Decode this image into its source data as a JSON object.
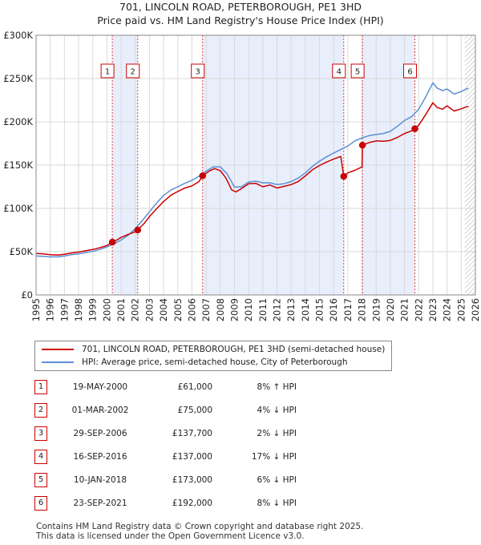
{
  "header": {
    "title_line1": "701, LINCOLN ROAD, PETERBOROUGH, PE1 3HD",
    "title_line2": "Price paid vs. HM Land Registry's House Price Index (HPI)"
  },
  "colors": {
    "property_line": "#cc0000",
    "hpi_line": "#5b8fd4",
    "shade": "#e8eefb",
    "grid": "#d9d9d9",
    "marker_border": "#cc0000",
    "vline": "#dd4444"
  },
  "legend": {
    "property": "701, LINCOLN ROAD, PETERBOROUGH, PE1 3HD (semi-detached house)",
    "hpi": "HPI: Average price, semi-detached house, City of Peterborough"
  },
  "sales": [
    {
      "num": "1",
      "date": "19-MAY-2000",
      "price": "£61,000",
      "hpi": "8% ↑ HPI"
    },
    {
      "num": "2",
      "date": "01-MAR-2002",
      "price": "£75,000",
      "hpi": "4% ↓ HPI"
    },
    {
      "num": "3",
      "date": "29-SEP-2006",
      "price": "£137,700",
      "hpi": "2% ↓ HPI"
    },
    {
      "num": "4",
      "date": "16-SEP-2016",
      "price": "£137,000",
      "hpi": "17% ↓ HPI"
    },
    {
      "num": "5",
      "date": "10-JAN-2018",
      "price": "£173,000",
      "hpi": "6% ↓ HPI"
    },
    {
      "num": "6",
      "date": "23-SEP-2021",
      "price": "£192,000",
      "hpi": "8% ↓ HPI"
    }
  ],
  "footer": {
    "line1": "Contains HM Land Registry data © Crown copyright and database right 2025.",
    "line2": "This data is licensed under the Open Government Licence v3.0."
  },
  "chart_data": {
    "type": "line",
    "title": "701, LINCOLN ROAD, PETERBOROUGH, PE1 3HD",
    "subtitle": "Price paid vs. HM Land Registry's House Price Index (HPI)",
    "xlim": [
      1995,
      2026
    ],
    "ylim": [
      0,
      300000
    ],
    "x_ticks": [
      1995,
      1996,
      1997,
      1998,
      1999,
      2000,
      2001,
      2002,
      2003,
      2004,
      2005,
      2006,
      2007,
      2008,
      2009,
      2010,
      2011,
      2012,
      2013,
      2014,
      2015,
      2016,
      2017,
      2018,
      2019,
      2020,
      2021,
      2022,
      2023,
      2024,
      2025,
      2026
    ],
    "x_tick_labels": [
      "1995",
      "1996",
      "1997",
      "1998",
      "1999",
      "2000",
      "2001",
      "2002",
      "2003",
      "2004",
      "2005",
      "2006",
      "2007",
      "2008",
      "2009",
      "2010",
      "2011",
      "2012",
      "2013",
      "2014",
      "2015",
      "2016",
      "2017",
      "2018",
      "2019",
      "2020",
      "2021",
      "2022",
      "2023",
      "2024",
      "2025",
      "2026"
    ],
    "y_ticks": [
      0,
      50000,
      100000,
      150000,
      200000,
      250000,
      300000
    ],
    "y_tick_labels": [
      "£0",
      "£50K",
      "£100K",
      "£150K",
      "£200K",
      "£250K",
      "£300K"
    ],
    "grid": true,
    "legend_position": "below",
    "shaded_ranges": [
      [
        2000.38,
        2002.17
      ],
      [
        2006.75,
        2016.71
      ],
      [
        2018.03,
        2021.73
      ]
    ],
    "hatched_from": 2025.25,
    "series": [
      {
        "name": "701, LINCOLN ROAD, PETERBOROUGH, PE1 3HD (semi-detached house)",
        "x": [
          1995.0,
          1995.5,
          1996.0,
          1996.5,
          1997.0,
          1997.5,
          1998.0,
          1998.5,
          1999.0,
          1999.5,
          2000.0,
          2000.38,
          2000.7,
          2001.0,
          2001.5,
          2002.0,
          2002.17,
          2002.6,
          2003.0,
          2003.5,
          2004.0,
          2004.5,
          2005.0,
          2005.5,
          2006.0,
          2006.5,
          2006.75,
          2007.2,
          2007.6,
          2008.0,
          2008.4,
          2008.8,
          2009.1,
          2009.5,
          2010.0,
          2010.5,
          2011.0,
          2011.5,
          2012.0,
          2012.5,
          2013.0,
          2013.5,
          2014.0,
          2014.5,
          2015.0,
          2015.5,
          2016.0,
          2016.5,
          2016.71,
          2017.0,
          2017.5,
          2018.0,
          2018.03,
          2018.5,
          2019.0,
          2019.5,
          2020.0,
          2020.5,
          2021.0,
          2021.5,
          2021.73,
          2022.0,
          2022.5,
          2023.0,
          2023.3,
          2023.7,
          2024.0,
          2024.5,
          2025.0,
          2025.5
        ],
        "y": [
          48000,
          47500,
          46500,
          46000,
          47000,
          48500,
          49500,
          51000,
          52500,
          54500,
          57000,
          61000,
          63500,
          66500,
          70000,
          73000,
          75000,
          82000,
          90500,
          99500,
          108000,
          115000,
          119500,
          123500,
          126000,
          131000,
          137700,
          143000,
          146000,
          143500,
          135000,
          121500,
          119000,
          123000,
          128500,
          129000,
          125000,
          127000,
          123500,
          125500,
          127500,
          131000,
          137500,
          144500,
          149500,
          153500,
          157000,
          160000,
          137000,
          141000,
          144000,
          148000,
          173000,
          176000,
          178000,
          177500,
          178500,
          182000,
          186500,
          189500,
          192000,
          196000,
          208500,
          222000,
          216500,
          214500,
          218500,
          212500,
          215000,
          218000
        ]
      },
      {
        "name": "HPI: Average price, semi-detached house, City of Peterborough",
        "x": [
          1995.0,
          1995.5,
          1996.0,
          1996.5,
          1997.0,
          1997.5,
          1998.0,
          1998.5,
          1999.0,
          1999.5,
          2000.0,
          2000.5,
          2001.0,
          2001.5,
          2002.0,
          2002.5,
          2003.0,
          2003.5,
          2004.0,
          2004.5,
          2005.0,
          2005.5,
          2006.0,
          2006.5,
          2007.0,
          2007.5,
          2008.0,
          2008.5,
          2009.0,
          2009.5,
          2010.0,
          2010.5,
          2011.0,
          2011.5,
          2012.0,
          2012.5,
          2013.0,
          2013.5,
          2014.0,
          2014.5,
          2015.0,
          2015.5,
          2016.0,
          2016.5,
          2017.0,
          2017.5,
          2018.0,
          2018.5,
          2019.0,
          2019.5,
          2020.0,
          2020.5,
          2021.0,
          2021.5,
          2022.0,
          2022.5,
          2023.0,
          2023.3,
          2023.7,
          2024.0,
          2024.5,
          2025.0,
          2025.5
        ],
        "y": [
          45000,
          44500,
          44000,
          44000,
          45000,
          46500,
          47500,
          49000,
          50500,
          52500,
          55500,
          59000,
          63500,
          69000,
          76500,
          86000,
          96000,
          106000,
          115000,
          121000,
          125000,
          129000,
          132500,
          137000,
          143000,
          148000,
          148000,
          139500,
          124500,
          125000,
          130500,
          131500,
          129500,
          129500,
          127500,
          128500,
          131000,
          135000,
          141000,
          148500,
          154500,
          159500,
          164000,
          168000,
          172000,
          178000,
          181500,
          184000,
          185500,
          186500,
          189000,
          195000,
          201500,
          206000,
          214500,
          229000,
          245000,
          239000,
          236000,
          238000,
          232000,
          235000,
          239000
        ]
      }
    ],
    "sales_markers": [
      {
        "label": "1",
        "x": 2000.38,
        "y": 61000
      },
      {
        "label": "2",
        "x": 2002.17,
        "y": 75000
      },
      {
        "label": "3",
        "x": 2006.75,
        "y": 137700
      },
      {
        "label": "4",
        "x": 2016.71,
        "y": 137000
      },
      {
        "label": "5",
        "x": 2018.03,
        "y": 173000
      },
      {
        "label": "6",
        "x": 2021.73,
        "y": 192000
      }
    ]
  }
}
